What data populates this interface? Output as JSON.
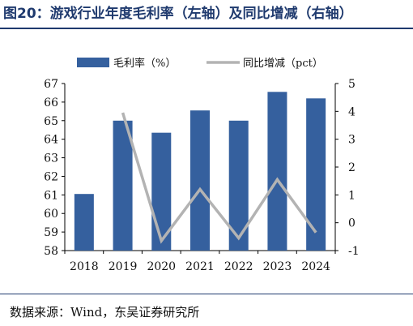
{
  "figure_label": "图20：游戏行业年度毛利率（左轴）及同比增减（右轴）",
  "source_note": "数据来源：Wind，东吴证券研究所",
  "colors": {
    "bar": "#35609e",
    "line": "#b3b3b3",
    "title": "#1f3a6e"
  },
  "chart_data": {
    "type": "bar",
    "categories": [
      "2018",
      "2019",
      "2020",
      "2021",
      "2022",
      "2023",
      "2024"
    ],
    "series": [
      {
        "name": "毛利率（%）",
        "type": "bar",
        "axis": "left",
        "values": [
          61.05,
          65.0,
          64.35,
          65.55,
          65.0,
          66.55,
          66.2
        ]
      },
      {
        "name": "同比增减（pct）",
        "type": "line",
        "axis": "right",
        "values": [
          null,
          3.95,
          -0.65,
          1.2,
          -0.55,
          1.55,
          -0.35
        ]
      }
    ],
    "left_axis": {
      "ylim": [
        58,
        67
      ],
      "ticks": [
        58,
        59,
        60,
        61,
        62,
        63,
        64,
        65,
        66,
        67
      ]
    },
    "right_axis": {
      "ylim": [
        -1,
        5
      ],
      "ticks": [
        -1,
        0,
        1,
        2,
        3,
        4,
        5
      ]
    },
    "legend_position": "top-center",
    "grid": false
  }
}
